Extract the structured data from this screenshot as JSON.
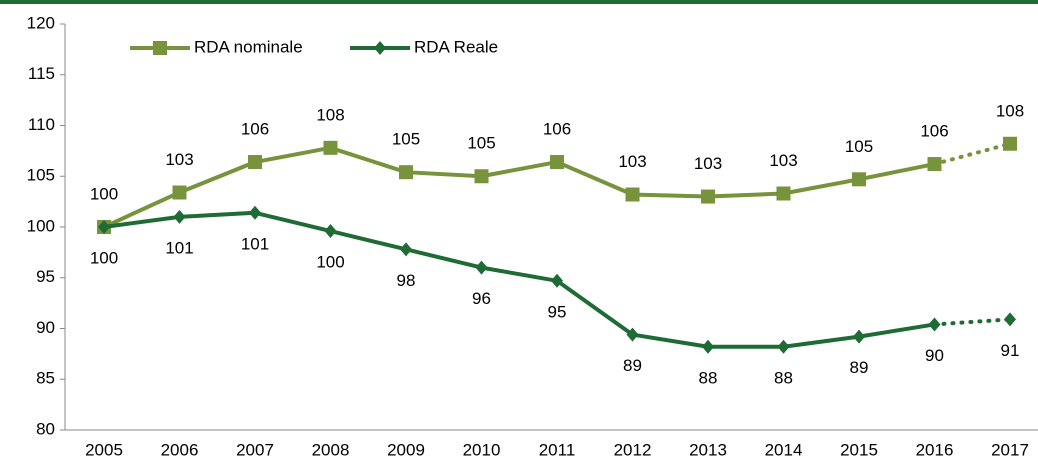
{
  "chart_data": {
    "type": "line",
    "categories": [
      "2005",
      "2006",
      "2007",
      "2008",
      "2009",
      "2010",
      "2011",
      "2012",
      "2013",
      "2014",
      "2015",
      "2016",
      "2017"
    ],
    "series": [
      {
        "name": "RDA nominale",
        "color": "#77933c",
        "marker": "square",
        "values": [
          100.0,
          103.4,
          106.4,
          107.8,
          105.4,
          105.0,
          106.4,
          103.2,
          103.0,
          103.3,
          104.7,
          106.2,
          108.2
        ],
        "value_labels": [
          100,
          103,
          106,
          108,
          105,
          105,
          106,
          103,
          103,
          103,
          105,
          106,
          108
        ]
      },
      {
        "name": "RDA Reale",
        "color": "#1e6b35",
        "marker": "diamond",
        "values": [
          100.0,
          101.0,
          101.4,
          99.6,
          97.8,
          96.0,
          94.7,
          89.4,
          88.2,
          88.2,
          89.2,
          90.4,
          90.9
        ],
        "value_labels": [
          100,
          101,
          101,
          100,
          98,
          96,
          95,
          89,
          88,
          88,
          89,
          90,
          91
        ]
      }
    ],
    "ylim": [
      80,
      120
    ],
    "yticks": [
      80,
      85,
      90,
      95,
      100,
      105,
      110,
      115,
      120
    ],
    "grid": false,
    "legend": "top-left",
    "dotted_last_segment": true
  }
}
